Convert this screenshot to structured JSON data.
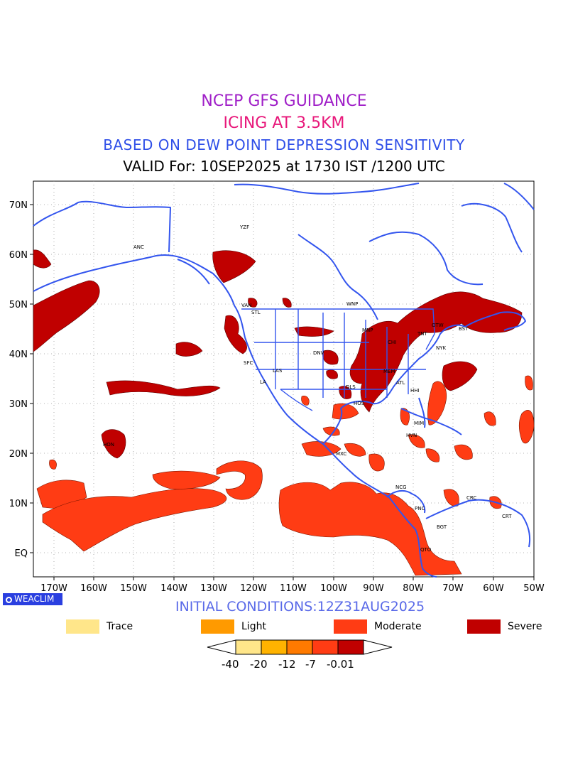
{
  "titles": {
    "line1": "NCEP GFS GUIDANCE",
    "line2": "ICING AT 3.5KM",
    "line3": "BASED ON DEW POINT DEPRESSION SENSITIVITY",
    "line4": "VALID For: 10SEP2025 at 1730 IST /1200 UTC"
  },
  "map": {
    "lat_labels": [
      "70N",
      "60N",
      "50N",
      "40N",
      "30N",
      "20N",
      "10N",
      "EQ"
    ],
    "lon_labels": [
      "170W",
      "160W",
      "150W",
      "140W",
      "130W",
      "120W",
      "110W",
      "100W",
      "90W",
      "80W",
      "70W",
      "60W",
      "50W"
    ],
    "stations": [
      "ANC",
      "YZF",
      "VAN",
      "STL",
      "SFC",
      "LAS",
      "LA",
      "DNV",
      "WNP",
      "MNP",
      "DLS",
      "HOS",
      "ATL",
      "HHI",
      "OTW",
      "TNT",
      "NYK",
      "BST",
      "CHI",
      "MEM",
      "MIM",
      "HVN",
      "MXC",
      "NCG",
      "PNC",
      "BGT",
      "CRC",
      "CRT",
      "QTO",
      "HON"
    ],
    "coastline_color": "#3355ee"
  },
  "logo": {
    "text": "WEACLIM"
  },
  "initial_conditions": "INITIAL CONDITIONS:12Z31AUG2025",
  "legend": {
    "items": [
      {
        "label": "Trace",
        "color": "#ffe68a"
      },
      {
        "label": "Light",
        "color": "#ff9a00"
      },
      {
        "label": "Moderate",
        "color": "#ff3c14"
      },
      {
        "label": "Severe",
        "color": "#c00000"
      }
    ]
  },
  "colorbar": {
    "labels": [
      "-40",
      "-20",
      "-12",
      "-7",
      "-0.01"
    ],
    "colors": [
      "#ffe68a",
      "#ffb300",
      "#ff7a00",
      "#ff3c14",
      "#c00000"
    ]
  }
}
